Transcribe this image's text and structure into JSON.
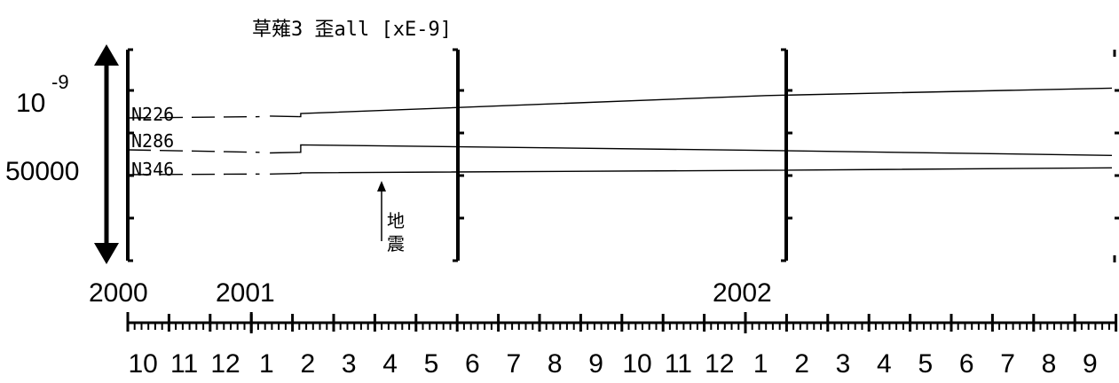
{
  "chart_data": {
    "type": "line",
    "title": "草薙3 歪all [xE-9]",
    "scale_bar": {
      "exponent_base": "10",
      "exponent": "-9",
      "value_label": "50000"
    },
    "x_years": [
      "2000",
      "2001",
      "2002"
    ],
    "x_month_labels": [
      "10",
      "11",
      "12",
      "1",
      "2",
      "3",
      "4",
      "5",
      "6",
      "7",
      "8",
      "9",
      "10",
      "11",
      "12",
      "1",
      "2",
      "3",
      "4",
      "5",
      "6",
      "7",
      "8",
      "9"
    ],
    "event": {
      "label_line1": "地",
      "label_line2": "震",
      "month_index": 6
    },
    "series": [
      {
        "name": "N226",
        "segments": [
          [
            [
              0.0,
              0.0
            ],
            [
              3.2,
              0.1
            ]
          ],
          [
            [
              3.45,
              0.15
            ],
            [
              4.15,
              0.1
            ]
          ],
          [
            [
              4.2,
              0.35
            ],
            [
              15.5,
              1.8
            ],
            [
              23.9,
              2.4
            ]
          ]
        ]
      },
      {
        "name": "N286",
        "segments": [
          [
            [
              0.0,
              0.0
            ],
            [
              3.2,
              -0.2
            ]
          ],
          [
            [
              3.45,
              -0.25
            ],
            [
              4.15,
              -0.2
            ]
          ],
          [
            [
              4.2,
              0.4
            ],
            [
              15.5,
              -0.05
            ],
            [
              23.9,
              -0.45
            ]
          ]
        ]
      },
      {
        "name": "N346",
        "segments": [
          [
            [
              0.0,
              0.0
            ],
            [
              3.2,
              0.05
            ]
          ],
          [
            [
              3.45,
              0.05
            ],
            [
              4.15,
              0.1
            ]
          ],
          [
            [
              4.2,
              0.15
            ],
            [
              15.5,
              0.35
            ],
            [
              23.9,
              0.55
            ]
          ]
        ]
      }
    ]
  }
}
